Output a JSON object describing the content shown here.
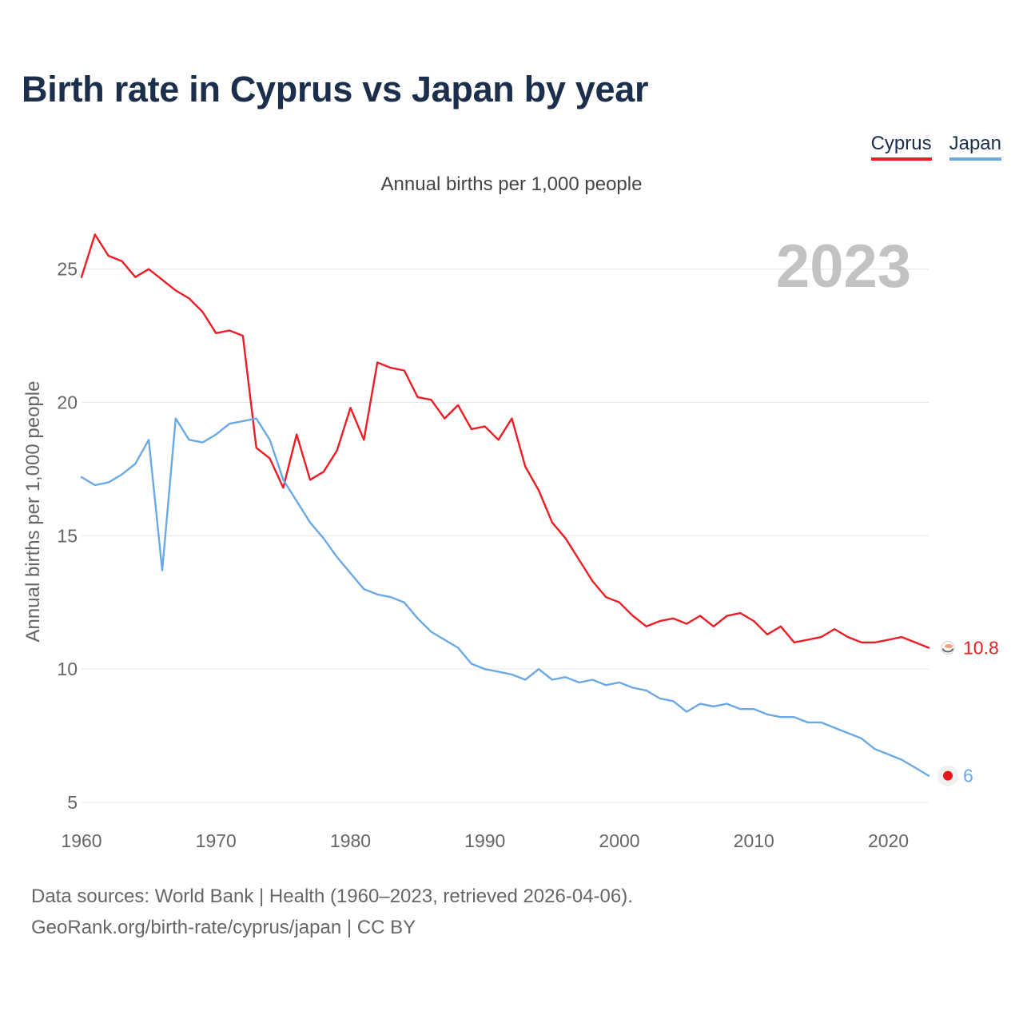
{
  "title": "Birth rate in Cyprus vs Japan by year",
  "subtitle": "Annual births per 1,000 people",
  "year_label": "2023",
  "footer": {
    "line1": "Data sources: World Bank | Health (1960–2023, retrieved 2026-04-06).",
    "line2": "GeoRank.org/birth-rate/cyprus/japan | CC BY"
  },
  "colors": {
    "cyprus": "#ee1c25",
    "japan": "#6aa9e3",
    "grid": "#e6e6e6",
    "tick": "#666666"
  },
  "chart_data": {
    "type": "line",
    "title": "Birth rate in Cyprus vs Japan by year",
    "ylabel": "Annual births per 1,000 people",
    "xlabel": "",
    "xlim": [
      1960,
      2023
    ],
    "ylim": [
      5,
      27
    ],
    "yticks": [
      5,
      10,
      15,
      20,
      25
    ],
    "xticks": [
      1960,
      1970,
      1980,
      1990,
      2000,
      2010,
      2020
    ],
    "grid": true,
    "legend": "top-right",
    "x": [
      1960,
      1961,
      1962,
      1963,
      1964,
      1965,
      1966,
      1967,
      1968,
      1969,
      1970,
      1971,
      1972,
      1973,
      1974,
      1975,
      1976,
      1977,
      1978,
      1979,
      1980,
      1981,
      1982,
      1983,
      1984,
      1985,
      1986,
      1987,
      1988,
      1989,
      1990,
      1991,
      1992,
      1993,
      1994,
      1995,
      1996,
      1997,
      1998,
      1999,
      2000,
      2001,
      2002,
      2003,
      2004,
      2005,
      2006,
      2007,
      2008,
      2009,
      2010,
      2011,
      2012,
      2013,
      2014,
      2015,
      2016,
      2017,
      2018,
      2019,
      2020,
      2021,
      2022,
      2023
    ],
    "series": [
      {
        "name": "Cyprus",
        "color": "#ee1c25",
        "end_label": "10.8",
        "values": [
          24.7,
          26.3,
          25.5,
          25.3,
          24.7,
          25.0,
          24.6,
          24.2,
          23.9,
          23.4,
          22.6,
          22.7,
          22.5,
          18.3,
          17.9,
          16.8,
          18.8,
          17.1,
          17.4,
          18.2,
          19.8,
          18.6,
          21.5,
          21.3,
          21.2,
          20.2,
          20.1,
          19.4,
          19.9,
          19.0,
          19.1,
          18.6,
          19.4,
          17.6,
          16.7,
          15.5,
          14.9,
          14.1,
          13.3,
          12.7,
          12.5,
          12.0,
          11.6,
          11.8,
          11.9,
          11.7,
          12.0,
          11.6,
          12.0,
          12.1,
          11.8,
          11.3,
          11.6,
          11.0,
          11.1,
          11.2,
          11.5,
          11.2,
          11.0,
          11.0,
          11.1,
          11.2,
          11.0,
          10.8
        ]
      },
      {
        "name": "Japan",
        "color": "#6aa9e3",
        "end_label": "6",
        "values": [
          17.2,
          16.9,
          17.0,
          17.3,
          17.7,
          18.6,
          13.7,
          19.4,
          18.6,
          18.5,
          18.8,
          19.2,
          19.3,
          19.4,
          18.6,
          17.1,
          16.3,
          15.5,
          14.9,
          14.2,
          13.6,
          13.0,
          12.8,
          12.7,
          12.5,
          11.9,
          11.4,
          11.1,
          10.8,
          10.2,
          10.0,
          9.9,
          9.8,
          9.6,
          10.0,
          9.6,
          9.7,
          9.5,
          9.6,
          9.4,
          9.5,
          9.3,
          9.2,
          8.9,
          8.8,
          8.4,
          8.7,
          8.6,
          8.7,
          8.5,
          8.5,
          8.3,
          8.2,
          8.2,
          8.0,
          8.0,
          7.8,
          7.6,
          7.4,
          7.0,
          6.8,
          6.6,
          6.3,
          6.0
        ]
      }
    ]
  }
}
